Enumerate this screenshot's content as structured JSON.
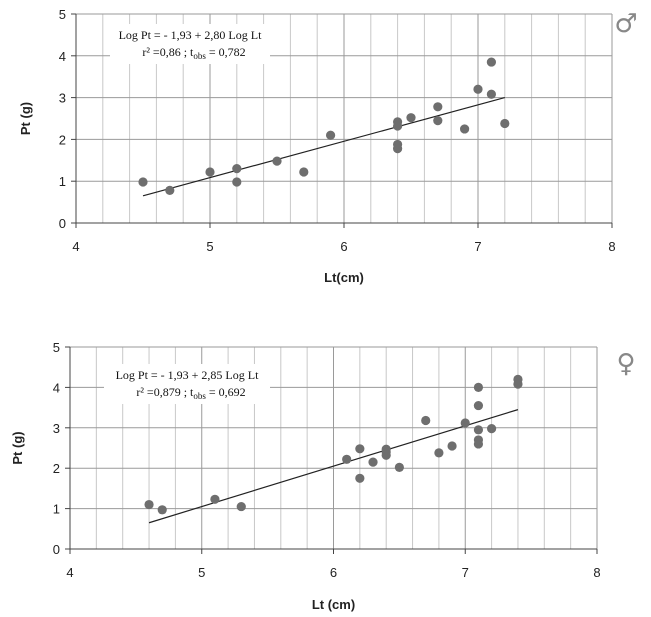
{
  "chart_data": [
    {
      "type": "scatter",
      "title": "",
      "xlabel": "Lt(cm)",
      "ylabel": "Pt (g)",
      "xlim": [
        4,
        8
      ],
      "ylim": [
        0,
        5
      ],
      "xticks": [
        "4",
        "5",
        "6",
        "7",
        "8"
      ],
      "yticks": [
        "0",
        "1",
        "2",
        "3",
        "4",
        "5"
      ],
      "grid": true,
      "symbol": "♂",
      "equation_line1": "Log Pt = - 1,93 + 2,80 Log Lt",
      "equation_line2_prefix": "r² =0,86 ;  t",
      "equation_line2_sub": "obs",
      "equation_line2_suffix": " = 0,782",
      "trendline": {
        "x": [
          4.5,
          7.2
        ],
        "y": [
          0.65,
          3.0
        ]
      },
      "x": [
        4.5,
        4.7,
        5.0,
        5.2,
        5.2,
        5.5,
        5.7,
        5.9,
        6.4,
        6.4,
        6.4,
        6.4,
        6.5,
        6.7,
        6.7,
        6.9,
        7.0,
        7.1,
        7.1,
        7.2
      ],
      "y": [
        0.98,
        0.78,
        1.22,
        1.3,
        0.98,
        1.48,
        1.22,
        2.1,
        2.42,
        2.32,
        1.88,
        1.78,
        2.52,
        2.78,
        2.45,
        2.25,
        3.2,
        3.85,
        3.08,
        2.38
      ],
      "color": "#6e6e6e"
    },
    {
      "type": "scatter",
      "title": "",
      "xlabel": "Lt (cm)",
      "ylabel": "Pt (g)",
      "xlim": [
        4,
        8
      ],
      "ylim": [
        0,
        5
      ],
      "xticks": [
        "4",
        "5",
        "6",
        "7",
        "8"
      ],
      "yticks": [
        "0",
        "1",
        "2",
        "3",
        "4",
        "5"
      ],
      "grid": true,
      "symbol": "♀",
      "equation_line1": "Log Pt = - 1,93 + 2,85 Log Lt",
      "equation_line2_prefix": "r² =0,879 ;  t",
      "equation_line2_sub": "obs",
      "equation_line2_suffix": " = 0,692",
      "trendline": {
        "x": [
          4.6,
          7.4
        ],
        "y": [
          0.65,
          3.45
        ]
      },
      "x": [
        4.6,
        4.7,
        5.1,
        5.3,
        6.1,
        6.2,
        6.2,
        6.3,
        6.4,
        6.4,
        6.4,
        6.5,
        6.7,
        6.8,
        6.9,
        7.0,
        7.1,
        7.1,
        7.1,
        7.1,
        7.1,
        7.2,
        7.4,
        7.4
      ],
      "y": [
        1.1,
        0.97,
        1.23,
        1.05,
        2.22,
        2.48,
        1.75,
        2.15,
        2.47,
        2.4,
        2.32,
        2.02,
        3.18,
        2.38,
        2.55,
        3.12,
        4.0,
        3.55,
        2.95,
        2.7,
        2.6,
        2.98,
        4.2,
        4.08
      ],
      "color": "#6e6e6e"
    }
  ]
}
